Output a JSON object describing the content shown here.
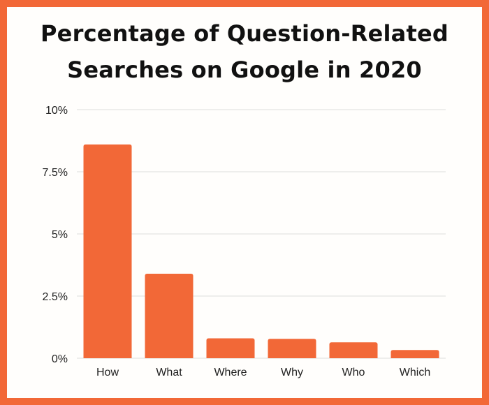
{
  "title": {
    "line1": "Percentage of Question-Related",
    "line2": "Searches on Google in 2020"
  },
  "colors": {
    "bar": "#f26837",
    "border": "#f26837",
    "grid": "#dddddd",
    "text": "#222222"
  },
  "chart_data": {
    "type": "bar",
    "title": "Percentage of Question-Related Searches on Google in 2020",
    "xlabel": "",
    "ylabel": "",
    "categories": [
      "How",
      "What",
      "Where",
      "Why",
      "Who",
      "Which"
    ],
    "values": [
      8.6,
      3.4,
      0.8,
      0.78,
      0.64,
      0.33
    ],
    "ylim": [
      0,
      10
    ],
    "yticks": [
      0,
      2.5,
      5,
      7.5,
      10
    ],
    "ytick_labels": [
      "0%",
      "2.5%",
      "5%",
      "7.5%",
      "10%"
    ],
    "grid": true,
    "legend": "none"
  }
}
